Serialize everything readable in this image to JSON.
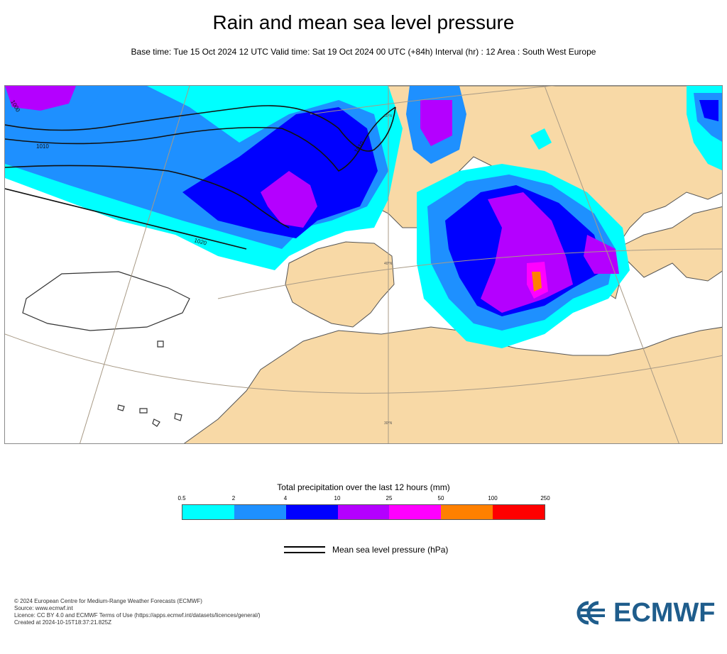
{
  "title": "Rain and mean sea level pressure",
  "subtitle": "Base time: Tue 15 Oct 2024 12 UTC Valid time: Sat 19 Oct 2024 00 UTC (+84h) Interval (hr) : 12 Area : South West Europe",
  "map": {
    "isobar_labels": [
      "1000",
      "1010",
      "1010",
      "1020"
    ],
    "graticule_labels": [
      "50°N",
      "40°N",
      "30°N"
    ],
    "colors": {
      "land": "#f8d9a6",
      "sea": "#ffffff",
      "coast": "#444444",
      "isobar": "#111111",
      "graticule": "#a89a86"
    }
  },
  "legend": {
    "title": "Total precipitation over the last 12 hours (mm)",
    "ticks": [
      "0.5",
      "2",
      "4",
      "10",
      "25",
      "50",
      "100",
      "250"
    ],
    "colors": [
      "#00ffff",
      "#1e90ff",
      "#0000ff",
      "#b400ff",
      "#ff00ff",
      "#ff8000",
      "#ff0000"
    ],
    "mslp_label": "Mean sea level pressure (hPa)"
  },
  "footer": {
    "copyright": "© 2024 European Centre for Medium-Range Weather Forecasts (ECMWF)",
    "source": "Source: www.ecmwf.int",
    "licence": "Licence: CC BY 4.0 and ECMWF Terms of Use (https://apps.ecmwf.int/datasets/licences/general/)",
    "created": "Created at 2024-10-15T18:37:21.825Z"
  },
  "logo": {
    "text": "ECMWF",
    "icon": "ecmwf-logo-icon"
  }
}
